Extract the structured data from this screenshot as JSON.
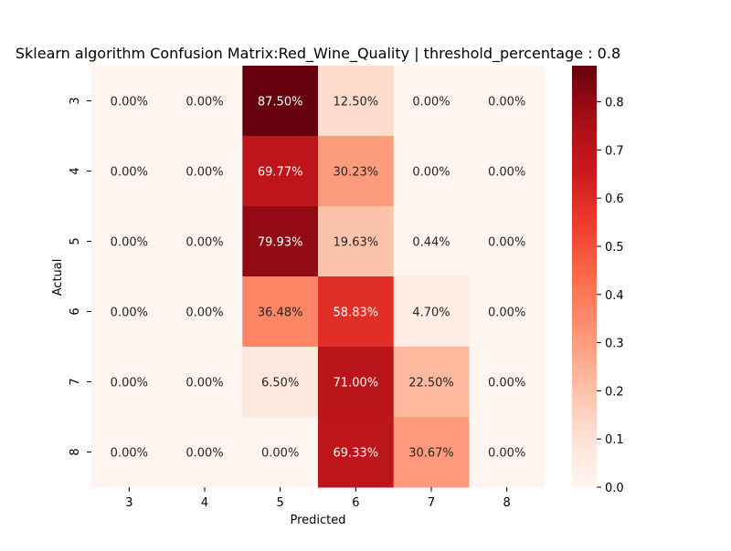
{
  "chart_data": {
    "type": "heatmap",
    "title": "Sklearn algorithm Confusion Matrix:Red_Wine_Quality | threshold_percentage : 0.8",
    "xlabel": "Predicted",
    "ylabel": "Actual",
    "x_categories": [
      "3",
      "4",
      "5",
      "6",
      "7",
      "8"
    ],
    "y_categories": [
      "3",
      "4",
      "5",
      "6",
      "7",
      "8"
    ],
    "values": [
      [
        0.0,
        0.0,
        0.875,
        0.125,
        0.0,
        0.0
      ],
      [
        0.0,
        0.0,
        0.6977,
        0.3023,
        0.0,
        0.0
      ],
      [
        0.0,
        0.0,
        0.7993,
        0.1963,
        0.0044,
        0.0
      ],
      [
        0.0,
        0.0,
        0.3648,
        0.5883,
        0.047,
        0.0
      ],
      [
        0.0,
        0.0,
        0.065,
        0.71,
        0.225,
        0.0
      ],
      [
        0.0,
        0.0,
        0.0,
        0.6933,
        0.3067,
        0.0
      ]
    ],
    "labels": [
      [
        "0.00%",
        "0.00%",
        "87.50%",
        "12.50%",
        "0.00%",
        "0.00%"
      ],
      [
        "0.00%",
        "0.00%",
        "69.77%",
        "30.23%",
        "0.00%",
        "0.00%"
      ],
      [
        "0.00%",
        "0.00%",
        "79.93%",
        "19.63%",
        "0.44%",
        "0.00%"
      ],
      [
        "0.00%",
        "0.00%",
        "36.48%",
        "58.83%",
        "4.70%",
        "0.00%"
      ],
      [
        "0.00%",
        "0.00%",
        "6.50%",
        "71.00%",
        "22.50%",
        "0.00%"
      ],
      [
        "0.00%",
        "0.00%",
        "0.00%",
        "69.33%",
        "30.67%",
        "0.00%"
      ]
    ],
    "colorbar": {
      "colormap": "Reds",
      "range": [
        0.0,
        0.875
      ],
      "ticks": [
        0.0,
        0.1,
        0.2,
        0.3,
        0.4,
        0.5,
        0.6,
        0.7,
        0.8
      ],
      "tick_labels": [
        "0.0",
        "0.1",
        "0.2",
        "0.3",
        "0.4",
        "0.5",
        "0.6",
        "0.7",
        "0.8"
      ]
    },
    "grid": false,
    "legend": "colorbar-right"
  }
}
